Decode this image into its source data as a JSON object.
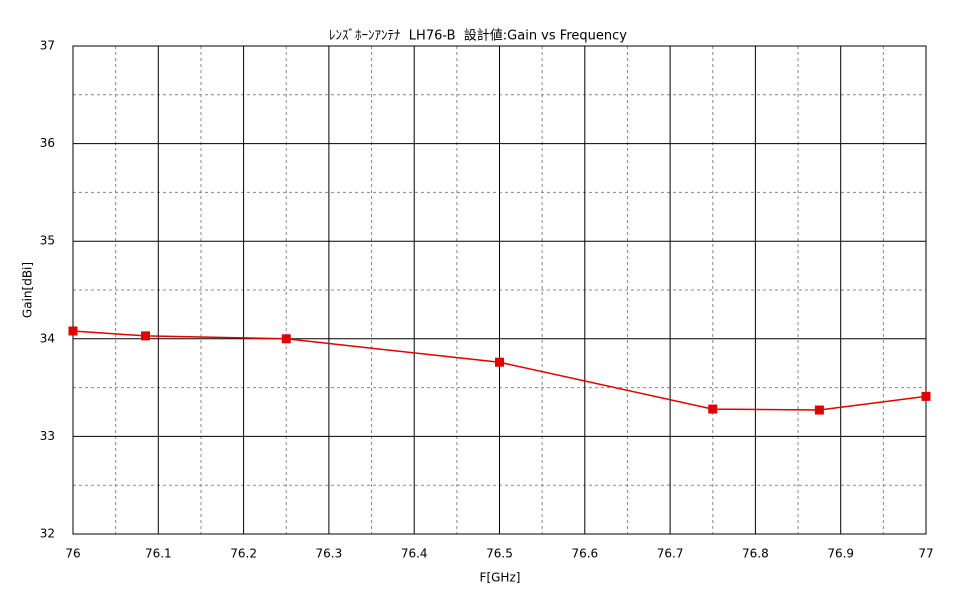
{
  "chart_data": {
    "type": "line",
    "title": "ﾚﾝｽﾞﾎｰﾝｱﾝﾃﾅ  LH76-B  設計値:Gain vs Frequency",
    "x_label": "F[GHz]",
    "y_label": "Gain[dBi]",
    "x": [
      76,
      76.085,
      76.25,
      76.5,
      76.75,
      76.875,
      77
    ],
    "series": [
      {
        "name": "Gain",
        "color": "#e00000",
        "values": [
          34.08,
          34.03,
          34.0,
          33.76,
          33.28,
          33.27,
          33.41
        ]
      }
    ],
    "xlim": [
      76,
      77
    ],
    "xticks": [
      76,
      76.1,
      76.2,
      76.3,
      76.4,
      76.5,
      76.6,
      76.7,
      76.8,
      76.9,
      77
    ],
    "ylim": [
      32,
      37
    ],
    "yticks": [
      32,
      33,
      34,
      35,
      36,
      37
    ],
    "grid": true,
    "minor_grid": true
  }
}
